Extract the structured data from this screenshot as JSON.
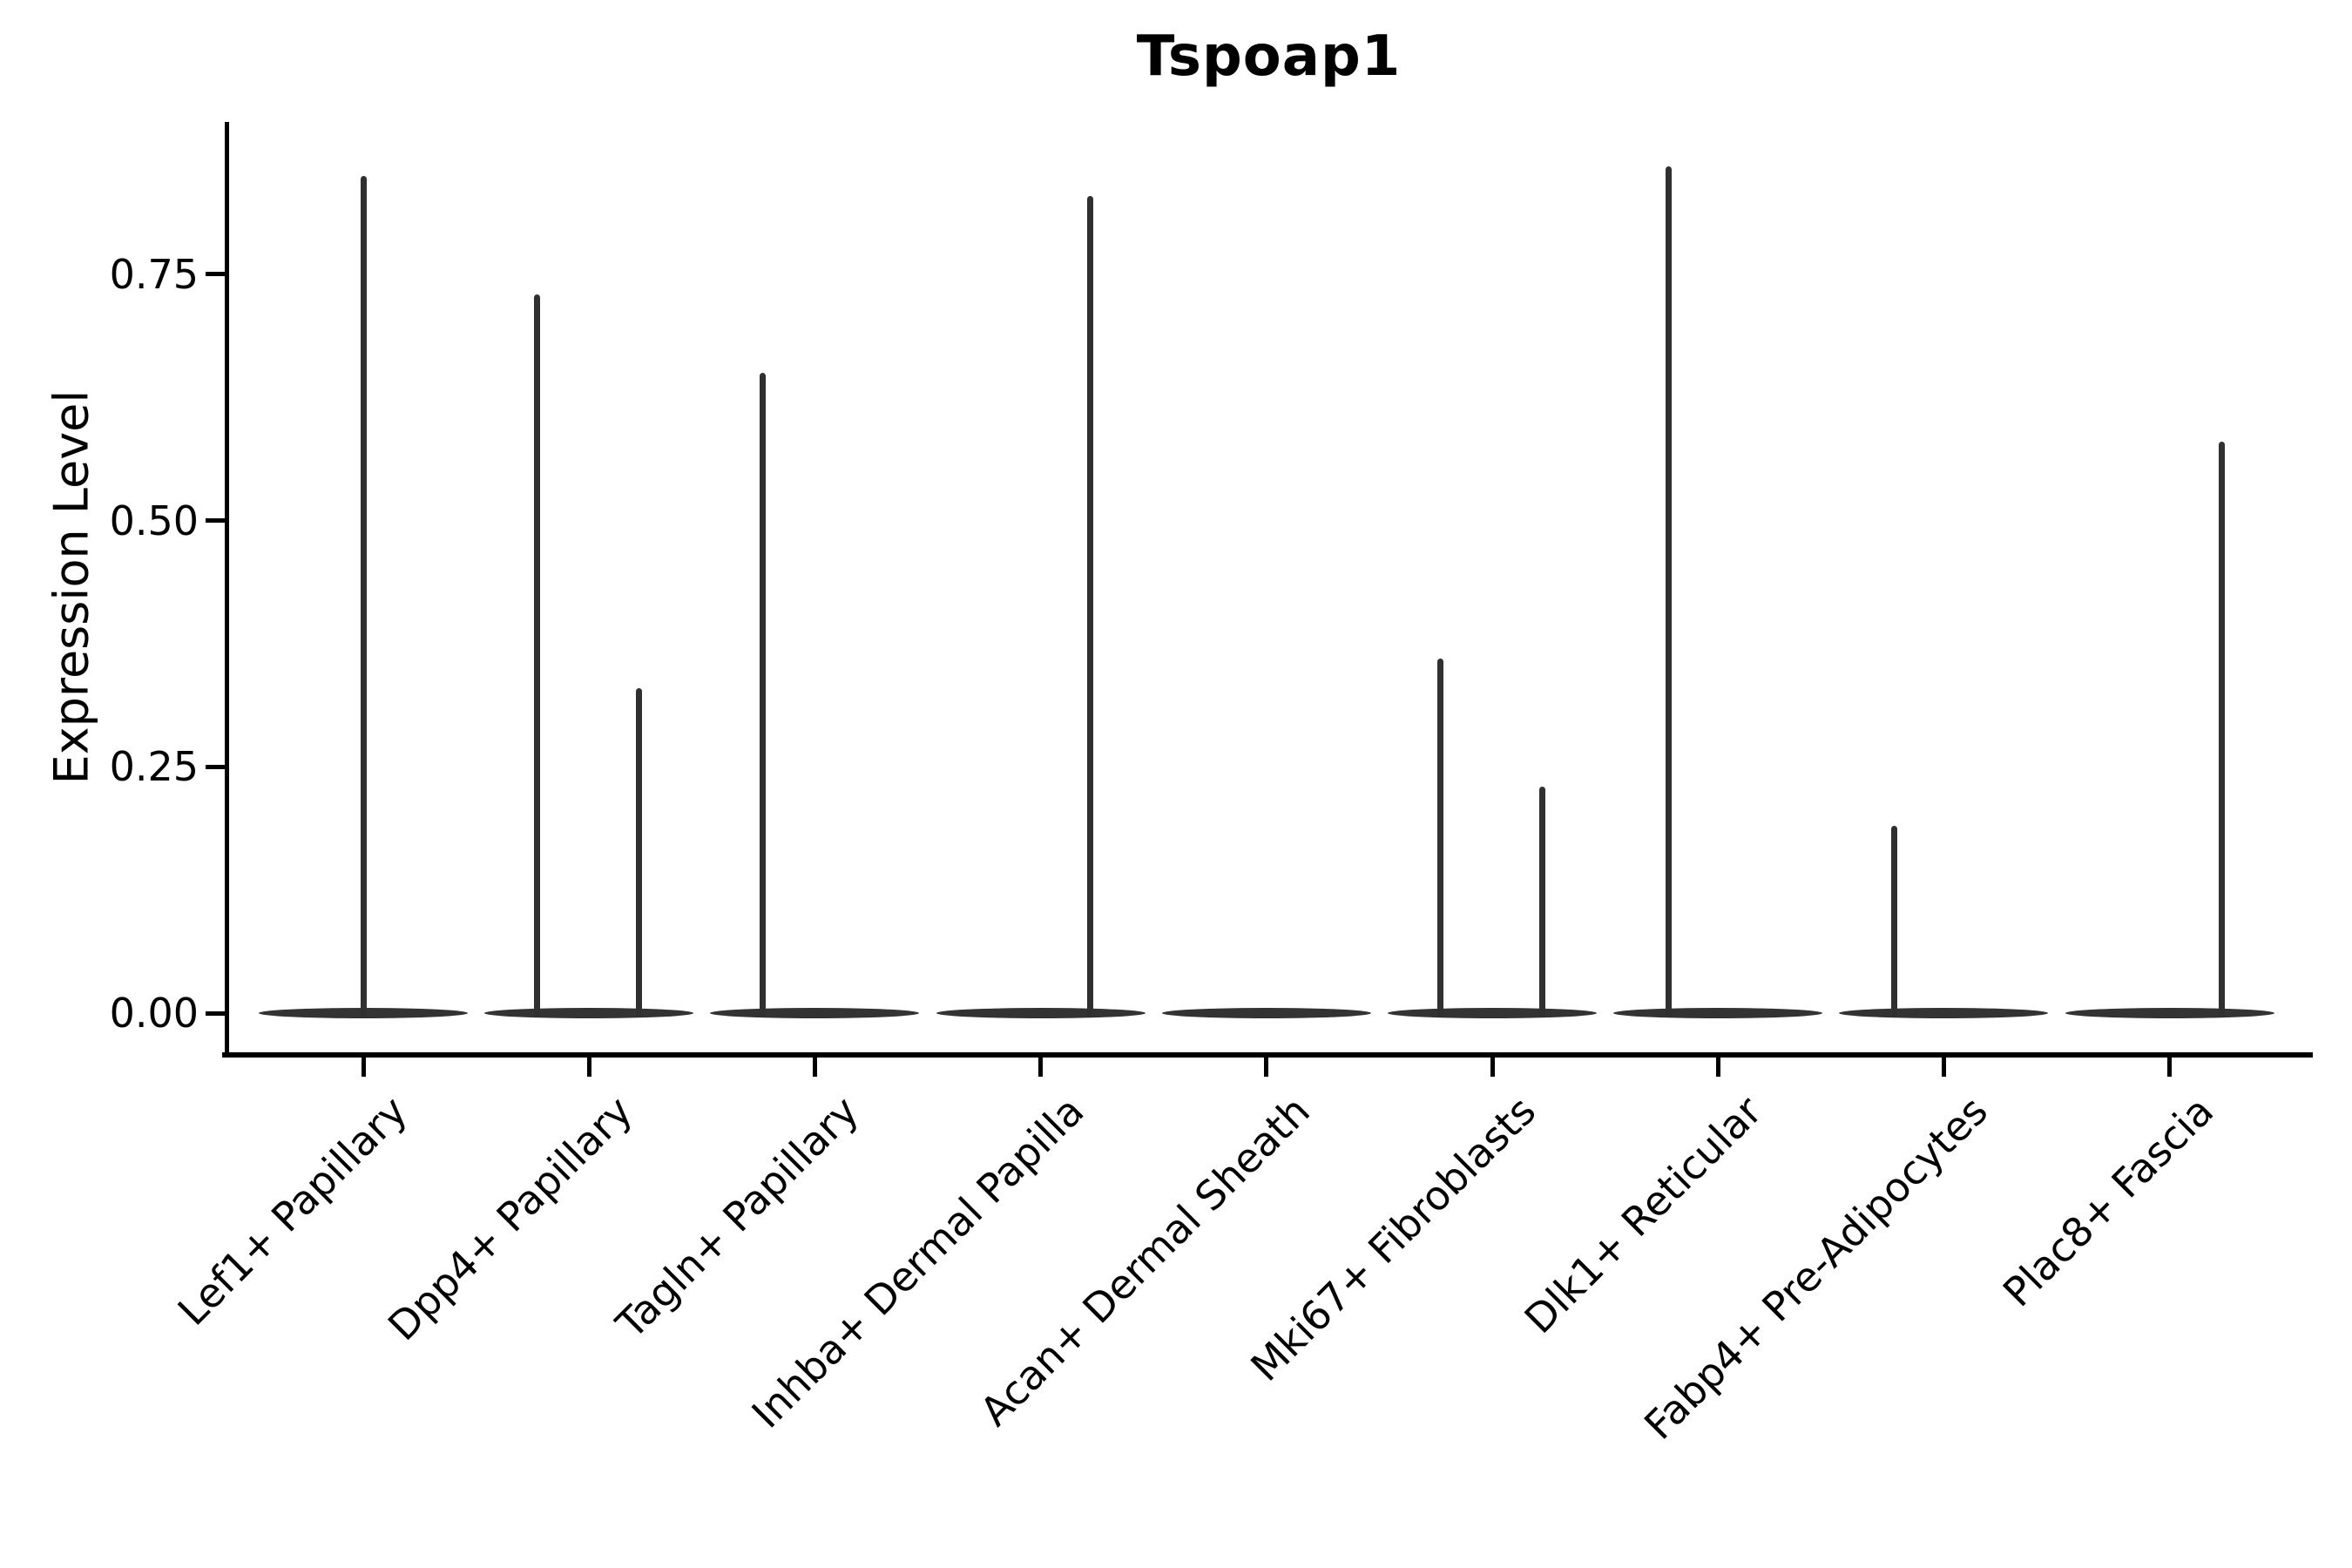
{
  "title": "Tspoap1",
  "ylabel": "Expression Level",
  "colors": {
    "line": "#333333",
    "axis": "#000000",
    "background": "#ffffff"
  },
  "chart_data": {
    "type": "violin",
    "title": "Tspoap1",
    "xlabel": "",
    "ylabel": "Expression Level",
    "ylim": [
      -0.04,
      0.9
    ],
    "grid": false,
    "legend": "none",
    "ytick_values": [
      0.0,
      0.25,
      0.5,
      0.75
    ],
    "ytick_labels": [
      "0.00",
      "0.25",
      "0.50",
      "0.75"
    ],
    "categories": [
      "Lef1+ Papillary",
      "Dpp4+ Papillary",
      "Tagln+ Papillary",
      "Inhba+ Dermal Papilla",
      "Acan+ Dermal Sheath",
      "Mki67+ Fibroblasts",
      "Dlk1+ Reticular",
      "Fabp4+ Pre-Adipocytes",
      "Plac8+ Fascia"
    ],
    "baseline_value": 0.0,
    "violin_note": "Each violin is flattened at expression 0 (most cells express 0); thin spikes mark the tail of expressing cells up to the max expression value.",
    "violins": [
      {
        "category": "Lef1+ Papillary",
        "spikes": [
          {
            "offset": 0.0,
            "value": 0.85
          }
        ]
      },
      {
        "category": "Dpp4+ Papillary",
        "spikes": [
          {
            "offset": -0.23,
            "value": 0.73
          },
          {
            "offset": 0.22,
            "value": 0.33
          }
        ]
      },
      {
        "category": "Tagln+ Papillary",
        "spikes": [
          {
            "offset": -0.23,
            "value": 0.65
          }
        ]
      },
      {
        "category": "Inhba+ Dermal Papilla",
        "spikes": [
          {
            "offset": 0.22,
            "value": 0.83
          }
        ]
      },
      {
        "category": "Acan+ Dermal Sheath",
        "spikes": []
      },
      {
        "category": "Mki67+ Fibroblasts",
        "spikes": [
          {
            "offset": -0.23,
            "value": 0.36
          },
          {
            "offset": 0.22,
            "value": 0.23
          }
        ]
      },
      {
        "category": "Dlk1+ Reticular",
        "spikes": [
          {
            "offset": -0.22,
            "value": 0.86
          }
        ]
      },
      {
        "category": "Fabp4+ Pre-Adipocytes",
        "spikes": [
          {
            "offset": -0.22,
            "value": 0.19
          }
        ]
      },
      {
        "category": "Plac8+ Fascia",
        "spikes": [
          {
            "offset": 0.23,
            "value": 0.58
          }
        ]
      }
    ]
  }
}
